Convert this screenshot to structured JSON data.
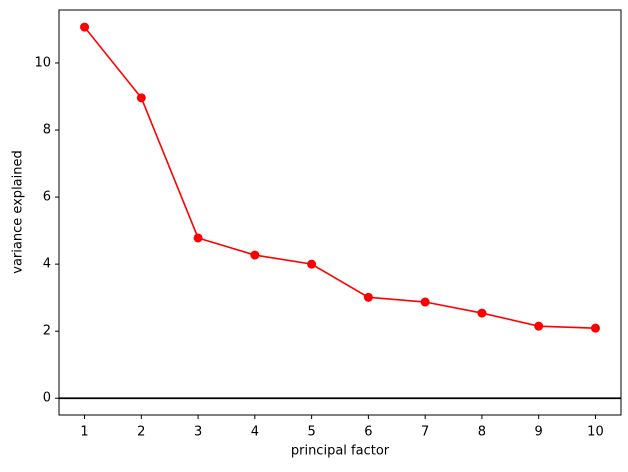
{
  "chart_data": {
    "type": "line",
    "x_label": "principal factor",
    "y_label": "variance explained",
    "x": [
      1,
      2,
      3,
      4,
      5,
      6,
      7,
      8,
      9,
      10
    ],
    "series": [
      {
        "color": "#ff0000",
        "values": [
          11.07,
          8.96,
          4.78,
          4.27,
          4.0,
          3.01,
          2.87,
          2.54,
          2.15,
          2.09
        ]
      }
    ],
    "xlim": [
      0.55,
      10.45
    ],
    "ylim": [
      -0.5,
      11.58
    ],
    "xticks": [
      1,
      2,
      3,
      4,
      5,
      6,
      7,
      8,
      9,
      10
    ],
    "yticks": [
      0,
      2,
      4,
      6,
      8,
      10
    ],
    "hline": 0,
    "hline_color": "#000000",
    "markers": true
  }
}
